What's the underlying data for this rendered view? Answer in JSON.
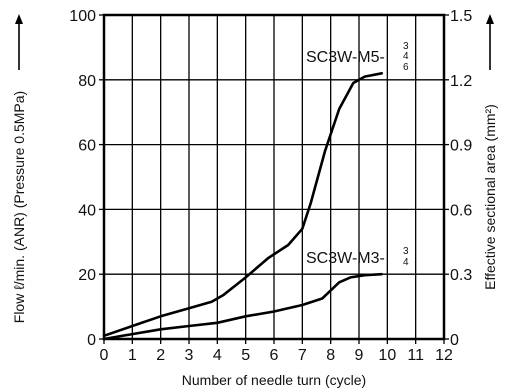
{
  "chart_data": {
    "type": "line",
    "x_label": "Number of needle turn (cycle)",
    "y_left_label": "Flow ℓ/min. (ANR) (Pressure 0.5MPa)",
    "y_right_label": "Effective sectional area (mm²)",
    "x_range": [
      0,
      12
    ],
    "y_left_range": [
      0,
      100
    ],
    "y_right_range": [
      0,
      1.5
    ],
    "x_ticks": [
      0,
      1,
      2,
      3,
      4,
      5,
      6,
      7,
      8,
      9,
      10,
      11,
      12
    ],
    "y_left_ticks": [
      0,
      20,
      40,
      60,
      80,
      100
    ],
    "y_right_ticks": [
      "0",
      "0.3",
      "0.6",
      "0.9",
      "1.2",
      "1.5"
    ],
    "grid": true,
    "series": [
      {
        "name": "SC3W-M5-",
        "name_fraction": [
          "3",
          "4",
          "6"
        ],
        "x": [
          0,
          1,
          2,
          3,
          3.8,
          4.2,
          5,
          5.8,
          6.5,
          7,
          7.3,
          7.8,
          8.3,
          8.8,
          9.2,
          9.8
        ],
        "y": [
          1,
          4,
          7,
          9.5,
          11.5,
          13.5,
          19,
          25,
          29,
          34,
          42,
          58,
          71,
          79,
          81,
          82
        ]
      },
      {
        "name": "SC3W-M3-",
        "name_fraction": [
          "3",
          "4"
        ],
        "x": [
          0,
          1,
          2,
          3,
          4,
          5,
          6,
          7,
          7.7,
          8,
          8.3,
          8.7,
          9.2,
          9.8
        ],
        "y": [
          0,
          1.5,
          3,
          4,
          5,
          7,
          8.5,
          10.5,
          12.5,
          15,
          17.5,
          19,
          19.7,
          20
        ]
      }
    ]
  }
}
